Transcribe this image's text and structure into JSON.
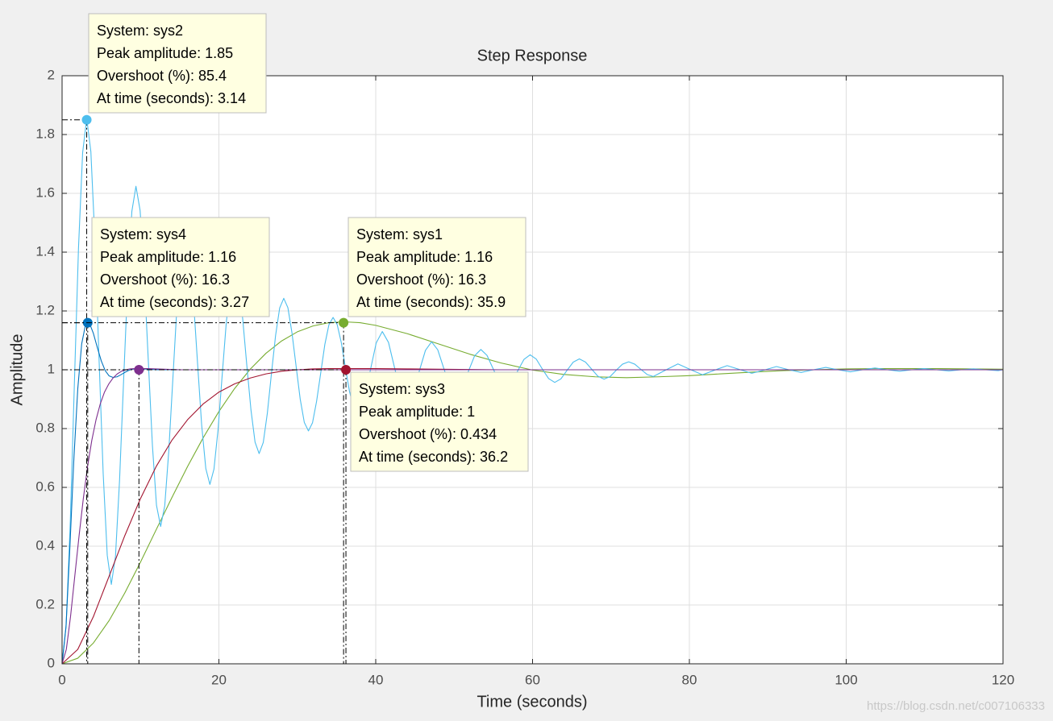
{
  "chart_data": {
    "type": "line",
    "title": "Step Response",
    "xlabel": "Time (seconds)",
    "ylabel": "Amplitude",
    "watermark": "https://blog.csdn.net/c007106333",
    "xlim": [
      0,
      120
    ],
    "ylim": [
      0,
      2
    ],
    "xticks": [
      0,
      20,
      40,
      60,
      80,
      100,
      120
    ],
    "yticks": [
      0,
      0.2,
      0.4,
      0.6,
      0.8,
      1,
      1.2,
      1.4,
      1.6,
      1.8,
      2
    ],
    "grid": true,
    "series": [
      {
        "color": "#77ac30",
        "x": [
          0,
          2,
          4,
          6,
          8,
          10,
          12,
          14,
          16,
          18,
          20,
          22,
          24,
          26,
          28,
          30,
          32,
          34,
          36,
          38,
          40,
          44,
          48,
          52,
          56,
          60,
          64,
          68,
          72,
          76,
          80,
          84,
          88,
          92,
          96,
          100,
          104,
          108,
          112,
          116,
          120
        ],
        "values": [
          0,
          0.019,
          0.071,
          0.147,
          0.241,
          0.346,
          0.456,
          0.565,
          0.671,
          0.769,
          0.858,
          0.936,
          1.002,
          1.056,
          1.098,
          1.129,
          1.149,
          1.16,
          1.163,
          1.16,
          1.151,
          1.123,
          1.088,
          1.053,
          1.023,
          0.999,
          0.984,
          0.976,
          0.973,
          0.976,
          0.98,
          0.986,
          0.992,
          0.997,
          1.0,
          1.003,
          1.004,
          1.004,
          1.004,
          1.003,
          1.002
        ]
      },
      {
        "color": "#4dbeee",
        "x": [
          0,
          0.52,
          1.05,
          1.57,
          2.09,
          2.62,
          3.14,
          3.67,
          4.19,
          4.71,
          5.24,
          5.76,
          6.28,
          6.81,
          7.33,
          7.85,
          8.38,
          8.9,
          9.42,
          9.95,
          10.47,
          11.0,
          11.52,
          12.04,
          12.57,
          13.09,
          13.61,
          14.14,
          14.66,
          15.18,
          15.71,
          16.23,
          16.76,
          17.28,
          17.8,
          18.33,
          18.85,
          19.37,
          19.9,
          20.42,
          20.94,
          21.47,
          21.99,
          22.51,
          23.04,
          23.56,
          24.09,
          24.61,
          25.13,
          25.66,
          26.18,
          26.7,
          27.23,
          27.75,
          28.27,
          28.8,
          29.32,
          29.85,
          30.37,
          30.89,
          31.42,
          31.94,
          32.46,
          32.99,
          33.51,
          34.03,
          34.56,
          35.08,
          35.61,
          36.13,
          36.65,
          37.18,
          37.7,
          38.48,
          39.27,
          40.06,
          40.84,
          41.63,
          42.41,
          43.2,
          43.98,
          44.77,
          45.55,
          46.34,
          47.12,
          47.91,
          48.69,
          49.48,
          50.27,
          51.05,
          51.84,
          52.62,
          53.41,
          54.19,
          54.98,
          55.76,
          56.55,
          57.33,
          58.12,
          58.9,
          59.69,
          60.48,
          61.26,
          62.05,
          62.83,
          63.62,
          64.4,
          65.19,
          65.97,
          66.76,
          67.54,
          68.33,
          69.12,
          69.9,
          70.69,
          71.47,
          72.26,
          73.04,
          73.83,
          74.61,
          75.4,
          76.97,
          78.54,
          80.11,
          81.68,
          83.25,
          84.82,
          86.39,
          87.96,
          89.54,
          91.11,
          92.68,
          94.25,
          95.82,
          97.39,
          98.96,
          100.53,
          102.1,
          103.67,
          105.24,
          106.81,
          108.38,
          109.96,
          111.53,
          113.1,
          114.67,
          116.24,
          117.81,
          119.38,
          120
        ],
        "values": [
          0,
          0.132,
          0.485,
          0.954,
          1.412,
          1.738,
          1.855,
          1.742,
          1.44,
          1.04,
          0.648,
          0.369,
          0.27,
          0.366,
          0.624,
          0.966,
          1.301,
          1.539,
          1.624,
          1.542,
          1.322,
          1.029,
          0.743,
          0.539,
          0.467,
          0.537,
          0.725,
          0.975,
          1.22,
          1.394,
          1.456,
          1.396,
          1.235,
          1.021,
          0.812,
          0.664,
          0.61,
          0.662,
          0.799,
          0.982,
          1.16,
          1.288,
          1.333,
          1.289,
          1.172,
          1.015,
          0.863,
          0.754,
          0.715,
          0.753,
          0.853,
          0.987,
          1.117,
          1.21,
          1.243,
          1.211,
          1.125,
          1.011,
          0.9,
          0.821,
          0.792,
          0.82,
          0.893,
          0.99,
          1.086,
          1.153,
          1.178,
          1.154,
          1.092,
          1.008,
          0.927,
          0.869,
          0.848,
          0.892,
          0.993,
          1.091,
          1.13,
          1.093,
          1.006,
          0.922,
          0.889,
          0.921,
          0.995,
          1.066,
          1.095,
          1.068,
          1.004,
          0.943,
          0.919,
          0.942,
          0.996,
          1.048,
          1.069,
          1.049,
          1.003,
          0.959,
          0.941,
          0.958,
          0.997,
          1.035,
          1.051,
          1.036,
          1.002,
          0.97,
          0.957,
          0.969,
          0.998,
          1.026,
          1.037,
          1.026,
          1.002,
          0.978,
          0.968,
          0.977,
          0.999,
          1.019,
          1.027,
          1.019,
          1.001,
          0.984,
          0.977,
          0.999,
          1.02,
          1.001,
          0.983,
          0.999,
          1.014,
          1.001,
          0.988,
          0.999,
          1.011,
          1.0,
          0.991,
          1.0,
          1.008,
          1.0,
          0.993,
          1.0,
          1.006,
          1.0,
          0.995,
          1.0,
          1.004,
          1.0,
          0.996,
          1.0,
          1.003,
          1.0,
          0.997,
          1.0
        ]
      },
      {
        "color": "#a2142f",
        "x": [
          0,
          2,
          4,
          6,
          8,
          10,
          12,
          14,
          16,
          18,
          20,
          22,
          24,
          26,
          28,
          30,
          32,
          34,
          36,
          38,
          40,
          44,
          48,
          52,
          56,
          60,
          80,
          100,
          120
        ],
        "values": [
          0,
          0.049,
          0.161,
          0.298,
          0.436,
          0.562,
          0.671,
          0.76,
          0.83,
          0.884,
          0.924,
          0.952,
          0.972,
          0.986,
          0.995,
          1.0,
          1.003,
          1.004,
          1.004,
          1.004,
          1.004,
          1.003,
          1.002,
          1.001,
          1.0,
          1.0,
          1,
          1,
          1
        ]
      },
      {
        "color": "#0072bd",
        "x": [
          0,
          0.5,
          1,
          1.5,
          2,
          2.5,
          3,
          3.5,
          4,
          4.5,
          5,
          5.5,
          6,
          6.5,
          7,
          7.5,
          8,
          8.5,
          9,
          9.5,
          10,
          11,
          12,
          20,
          120
        ],
        "values": [
          0,
          0.126,
          0.399,
          0.695,
          0.935,
          1.088,
          1.155,
          1.158,
          1.123,
          1.075,
          1.03,
          0.997,
          0.979,
          0.974,
          0.976,
          0.983,
          0.991,
          0.998,
          1.002,
          1.004,
          1.004,
          1.002,
          1.0,
          1,
          1
        ]
      },
      {
        "color": "#7e2f8e",
        "x": [
          0,
          0.54,
          1.08,
          1.62,
          2.17,
          2.71,
          3.25,
          3.79,
          4.33,
          4.87,
          5.41,
          5.96,
          6.5,
          7.04,
          7.58,
          8.12,
          8.66,
          9.2,
          9.74,
          10.29,
          10.83,
          11.91,
          12.99,
          14.08,
          15.16,
          16.24,
          120
        ],
        "values": [
          0,
          0.049,
          0.161,
          0.298,
          0.436,
          0.562,
          0.671,
          0.76,
          0.83,
          0.884,
          0.924,
          0.952,
          0.972,
          0.986,
          0.995,
          1.0,
          1.003,
          1.004,
          1.004,
          1.004,
          1.004,
          1.003,
          1.002,
          1.001,
          1.0,
          1.0,
          1
        ]
      }
    ],
    "datatips": [
      {
        "color": "#4dbeee",
        "x": 3.14,
        "y": 1.85,
        "lines": [
          "System: sys2",
          "Peak amplitude: 1.85",
          "Overshoot (%): 85.4",
          "At time (seconds): 3.14"
        ]
      },
      {
        "color": "#0072bd",
        "x": 3.27,
        "y": 1.16,
        "lines": [
          "System: sys4",
          "Peak amplitude: 1.16",
          "Overshoot (%): 16.3",
          "At time (seconds): 3.27"
        ]
      },
      {
        "color": "#77ac30",
        "x": 35.9,
        "y": 1.16,
        "lines": [
          "System: sys1",
          "Peak amplitude: 1.16",
          "Overshoot (%): 16.3",
          "At time (seconds): 35.9"
        ]
      },
      {
        "color": "#a2142f",
        "x": 36.2,
        "y": 1,
        "lines": [
          "System: sys3",
          "Peak amplitude: 1",
          "Overshoot (%): 0.434",
          "At time (seconds): 36.2"
        ]
      },
      {
        "color": "#7e2f8e",
        "x": 9.8,
        "y": 1.0
      }
    ]
  }
}
